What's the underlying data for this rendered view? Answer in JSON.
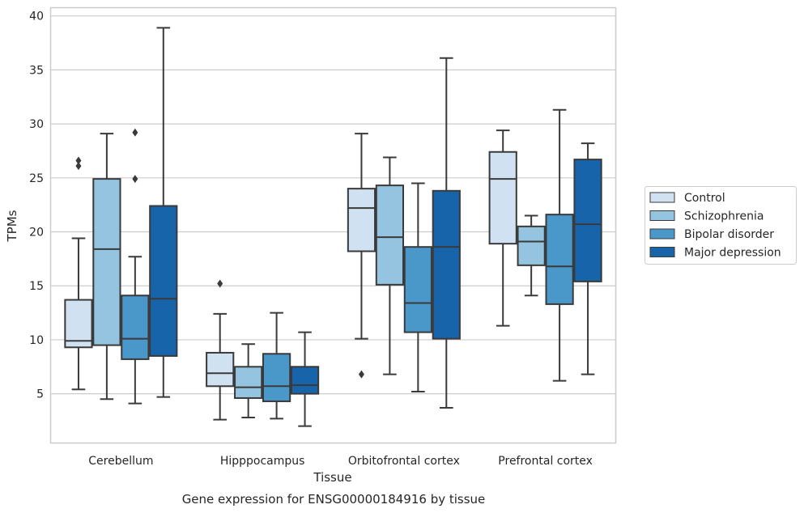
{
  "chart_data": {
    "type": "box",
    "title": "",
    "caption": "Gene expression for ENSG00000184916 by tissue",
    "xlabel": "Tissue",
    "ylabel": "TPMs",
    "ylim": [
      0.4,
      40.8
    ],
    "yticks": [
      5,
      10,
      15,
      20,
      25,
      30,
      35,
      40
    ],
    "grid": "horizontal",
    "legend_position": "right",
    "categories": [
      "Cerebellum",
      "Hipppocampus",
      "Orbitofrontal cortex",
      "Prefrontal cortex"
    ],
    "series": [
      {
        "name": "Control",
        "color": "#d0e1f2",
        "boxes": [
          {
            "whislo": 5.4,
            "q1": 9.3,
            "med": 9.9,
            "q3": 13.7,
            "whishi": 19.4,
            "fliers": [
              26.1,
              26.6
            ]
          },
          {
            "whislo": 2.6,
            "q1": 5.7,
            "med": 6.9,
            "q3": 8.8,
            "whishi": 12.4,
            "fliers": [
              15.2
            ]
          },
          {
            "whislo": 10.1,
            "q1": 18.2,
            "med": 22.2,
            "q3": 24.0,
            "whishi": 29.1,
            "fliers": [
              6.8
            ]
          },
          {
            "whislo": 11.3,
            "q1": 18.9,
            "med": 24.9,
            "q3": 27.4,
            "whishi": 29.4,
            "fliers": []
          }
        ]
      },
      {
        "name": "Schizophrenia",
        "color": "#94c4df",
        "boxes": [
          {
            "whislo": 4.5,
            "q1": 9.5,
            "med": 18.4,
            "q3": 24.9,
            "whishi": 29.1,
            "fliers": []
          },
          {
            "whislo": 2.8,
            "q1": 4.6,
            "med": 5.6,
            "q3": 7.5,
            "whishi": 9.6,
            "fliers": []
          },
          {
            "whislo": 6.8,
            "q1": 15.1,
            "med": 19.5,
            "q3": 24.3,
            "whishi": 26.9,
            "fliers": []
          },
          {
            "whislo": 14.1,
            "q1": 16.9,
            "med": 19.1,
            "q3": 20.5,
            "whishi": 21.5,
            "fliers": []
          }
        ]
      },
      {
        "name": "Bipolar disorder",
        "color": "#4a98c9",
        "boxes": [
          {
            "whislo": 4.1,
            "q1": 8.2,
            "med": 10.1,
            "q3": 14.1,
            "whishi": 17.7,
            "fliers": [
              24.9,
              29.2
            ]
          },
          {
            "whislo": 2.7,
            "q1": 4.3,
            "med": 5.7,
            "q3": 8.7,
            "whishi": 12.5,
            "fliers": []
          },
          {
            "whislo": 5.2,
            "q1": 10.7,
            "med": 13.4,
            "q3": 18.6,
            "whishi": 24.5,
            "fliers": []
          },
          {
            "whislo": 6.2,
            "q1": 13.3,
            "med": 16.8,
            "q3": 21.6,
            "whishi": 31.3,
            "fliers": []
          }
        ]
      },
      {
        "name": "Major depression",
        "color": "#1764ab",
        "boxes": [
          {
            "whislo": 4.7,
            "q1": 8.5,
            "med": 13.8,
            "q3": 22.4,
            "whishi": 38.9,
            "fliers": []
          },
          {
            "whislo": 2.0,
            "q1": 5.0,
            "med": 5.8,
            "q3": 7.5,
            "whishi": 10.7,
            "fliers": []
          },
          {
            "whislo": 3.7,
            "q1": 10.1,
            "med": 18.6,
            "q3": 23.8,
            "whishi": 36.1,
            "fliers": []
          },
          {
            "whislo": 6.8,
            "q1": 15.4,
            "med": 20.7,
            "q3": 26.7,
            "whishi": 28.2,
            "fliers": []
          }
        ]
      }
    ]
  }
}
